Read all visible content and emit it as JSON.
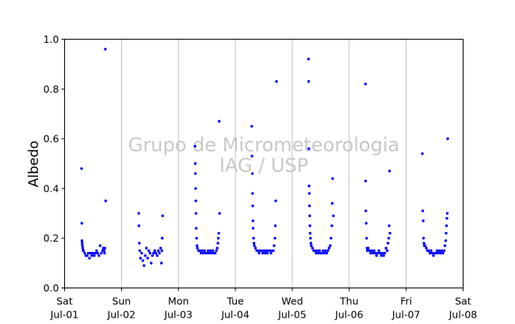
{
  "chart_data": {
    "type": "scatter",
    "title": "",
    "xlabel": "",
    "ylabel": "Albedo",
    "ylim": [
      0.0,
      1.0
    ],
    "xlim": [
      "2017-07-01",
      "2017-07-08"
    ],
    "y_ticks": [
      "0.0",
      "0.2",
      "0.4",
      "0.6",
      "0.8",
      "1.0"
    ],
    "x_ticks": [
      {
        "date": "2017-07-01",
        "day": "Sat",
        "label": "Jul-01"
      },
      {
        "date": "2017-07-02",
        "day": "Sun",
        "label": "Jul-02"
      },
      {
        "date": "2017-07-03",
        "day": "Mon",
        "label": "Jul-03"
      },
      {
        "date": "2017-07-04",
        "day": "Tue",
        "label": "Jul-04"
      },
      {
        "date": "2017-07-05",
        "day": "Wed",
        "label": "Jul-05"
      },
      {
        "date": "2017-07-06",
        "day": "Thu",
        "label": "Jul-06"
      },
      {
        "date": "2017-07-07",
        "day": "Fri",
        "label": "Jul-07"
      },
      {
        "date": "2017-07-08",
        "day": "Sat",
        "label": "Jul-08"
      }
    ],
    "grid": "vertical",
    "marker_color": "#0000ff",
    "watermark": [
      "Grupo de Micrometeorologia",
      "IAG / USP"
    ],
    "series": [
      {
        "x": [
          "2017-07-01 07:10",
          "2017-07-01 07:15",
          "2017-07-01 07:20",
          "2017-07-01 07:25",
          "2017-07-01 07:30",
          "2017-07-01 07:40",
          "2017-07-01 07:50",
          "2017-07-01 08:00",
          "2017-07-01 08:30",
          "2017-07-01 09:00",
          "2017-07-01 09:30",
          "2017-07-01 10:00",
          "2017-07-01 10:30",
          "2017-07-01 11:00",
          "2017-07-01 11:30",
          "2017-07-01 12:00",
          "2017-07-01 12:30",
          "2017-07-01 13:00",
          "2017-07-01 13:30",
          "2017-07-01 14:00",
          "2017-07-01 14:30",
          "2017-07-01 15:00",
          "2017-07-01 15:30",
          "2017-07-01 16:00",
          "2017-07-01 16:20",
          "2017-07-01 16:40",
          "2017-07-01 16:50",
          "2017-07-01 17:00",
          "2017-07-01 17:10",
          "2017-07-01 17:20",
          "2017-07-02 07:15",
          "2017-07-02 07:20",
          "2017-07-02 07:30",
          "2017-07-02 07:40",
          "2017-07-02 08:00",
          "2017-07-02 08:30",
          "2017-07-02 09:00",
          "2017-07-02 09:30",
          "2017-07-02 10:00",
          "2017-07-02 10:30",
          "2017-07-02 11:00",
          "2017-07-02 11:30",
          "2017-07-02 12:00",
          "2017-07-02 12:30",
          "2017-07-02 13:00",
          "2017-07-02 13:30",
          "2017-07-02 14:00",
          "2017-07-02 14:30",
          "2017-07-02 15:00",
          "2017-07-02 15:30",
          "2017-07-02 16:00",
          "2017-07-02 16:30",
          "2017-07-02 16:50",
          "2017-07-02 17:00",
          "2017-07-02 17:10",
          "2017-07-02 17:20",
          "2017-07-03 07:00",
          "2017-07-03 07:05",
          "2017-07-03 07:10",
          "2017-07-03 07:15",
          "2017-07-03 07:20",
          "2017-07-03 07:25",
          "2017-07-03 07:30",
          "2017-07-03 07:40",
          "2017-07-03 07:50",
          "2017-07-03 08:00",
          "2017-07-03 08:30",
          "2017-07-03 09:00",
          "2017-07-03 09:30",
          "2017-07-03 10:00",
          "2017-07-03 10:30",
          "2017-07-03 11:00",
          "2017-07-03 11:30",
          "2017-07-03 12:00",
          "2017-07-03 12:30",
          "2017-07-03 13:00",
          "2017-07-03 13:30",
          "2017-07-03 14:00",
          "2017-07-03 14:30",
          "2017-07-03 15:00",
          "2017-07-03 15:30",
          "2017-07-03 16:00",
          "2017-07-03 16:20",
          "2017-07-03 16:40",
          "2017-07-03 16:50",
          "2017-07-03 17:00",
          "2017-07-03 17:10",
          "2017-07-03 17:20",
          "2017-07-04 06:55",
          "2017-07-04 07:00",
          "2017-07-04 07:10",
          "2017-07-04 07:15",
          "2017-07-04 07:20",
          "2017-07-04 07:25",
          "2017-07-04 07:30",
          "2017-07-04 07:40",
          "2017-07-04 07:50",
          "2017-07-04 08:00",
          "2017-07-04 08:30",
          "2017-07-04 09:00",
          "2017-07-04 09:30",
          "2017-07-04 10:00",
          "2017-07-04 10:30",
          "2017-07-04 11:00",
          "2017-07-04 11:30",
          "2017-07-04 12:00",
          "2017-07-04 12:30",
          "2017-07-04 13:00",
          "2017-07-04 13:30",
          "2017-07-04 14:00",
          "2017-07-04 14:30",
          "2017-07-04 15:00",
          "2017-07-04 15:30",
          "2017-07-04 16:00",
          "2017-07-04 16:20",
          "2017-07-04 16:40",
          "2017-07-04 16:50",
          "2017-07-04 17:00",
          "2017-07-04 17:20",
          "2017-07-05 06:50",
          "2017-07-05 06:55",
          "2017-07-05 07:00",
          "2017-07-05 07:05",
          "2017-07-05 07:10",
          "2017-07-05 07:15",
          "2017-07-05 07:20",
          "2017-07-05 07:25",
          "2017-07-05 07:30",
          "2017-07-05 07:40",
          "2017-07-05 07:50",
          "2017-07-05 08:00",
          "2017-07-05 08:30",
          "2017-07-05 09:00",
          "2017-07-05 09:30",
          "2017-07-05 10:00",
          "2017-07-05 10:30",
          "2017-07-05 11:00",
          "2017-07-05 11:30",
          "2017-07-05 12:00",
          "2017-07-05 12:30",
          "2017-07-05 13:00",
          "2017-07-05 13:30",
          "2017-07-05 14:00",
          "2017-07-05 14:30",
          "2017-07-05 15:00",
          "2017-07-05 15:30",
          "2017-07-05 16:00",
          "2017-07-05 16:20",
          "2017-07-05 16:40",
          "2017-07-05 16:50",
          "2017-07-05 17:00",
          "2017-07-05 17:20",
          "2017-07-06 06:50",
          "2017-07-06 06:55",
          "2017-07-06 07:00",
          "2017-07-06 07:10",
          "2017-07-06 07:20",
          "2017-07-06 07:30",
          "2017-07-06 07:40",
          "2017-07-06 08:00",
          "2017-07-06 08:30",
          "2017-07-06 09:00",
          "2017-07-06 09:30",
          "2017-07-06 10:00",
          "2017-07-06 10:30",
          "2017-07-06 11:00",
          "2017-07-06 11:30",
          "2017-07-06 12:00",
          "2017-07-06 12:30",
          "2017-07-06 13:00",
          "2017-07-06 13:30",
          "2017-07-06 14:00",
          "2017-07-06 14:30",
          "2017-07-06 15:00",
          "2017-07-06 15:30",
          "2017-07-06 16:00",
          "2017-07-06 16:20",
          "2017-07-06 16:40",
          "2017-07-06 16:50",
          "2017-07-06 17:00",
          "2017-07-06 17:10",
          "2017-07-07 06:50",
          "2017-07-07 07:00",
          "2017-07-07 07:10",
          "2017-07-07 07:20",
          "2017-07-07 07:30",
          "2017-07-07 07:40",
          "2017-07-07 08:00",
          "2017-07-07 08:30",
          "2017-07-07 09:00",
          "2017-07-07 09:30",
          "2017-07-07 10:00",
          "2017-07-07 10:30",
          "2017-07-07 11:00",
          "2017-07-07 11:30",
          "2017-07-07 12:00",
          "2017-07-07 12:30",
          "2017-07-07 13:00",
          "2017-07-07 13:30",
          "2017-07-07 14:00",
          "2017-07-07 14:30",
          "2017-07-07 15:00",
          "2017-07-07 15:30",
          "2017-07-07 16:00",
          "2017-07-07 16:20",
          "2017-07-07 16:40",
          "2017-07-07 16:50",
          "2017-07-07 17:00",
          "2017-07-07 17:10",
          "2017-07-07 17:20",
          "2017-07-07 17:30"
        ],
        "y": [
          0.48,
          0.26,
          0.19,
          0.18,
          0.17,
          0.16,
          0.15,
          0.15,
          0.14,
          0.13,
          0.13,
          0.14,
          0.12,
          0.14,
          0.13,
          0.14,
          0.13,
          0.14,
          0.15,
          0.14,
          0.13,
          0.17,
          0.14,
          0.15,
          0.16,
          0.15,
          0.14,
          0.16,
          0.96,
          0.35,
          0.3,
          0.25,
          0.18,
          0.15,
          0.12,
          0.14,
          0.11,
          0.09,
          0.13,
          0.16,
          0.12,
          0.15,
          0.14,
          0.1,
          0.13,
          0.14,
          0.15,
          0.14,
          0.13,
          0.15,
          0.14,
          0.16,
          0.1,
          0.15,
          0.2,
          0.29,
          0.57,
          0.5,
          0.46,
          0.4,
          0.35,
          0.3,
          0.24,
          0.2,
          0.17,
          0.16,
          0.15,
          0.15,
          0.14,
          0.15,
          0.14,
          0.15,
          0.14,
          0.14,
          0.15,
          0.14,
          0.15,
          0.14,
          0.15,
          0.14,
          0.14,
          0.15,
          0.16,
          0.18,
          0.2,
          0.22,
          0.67,
          0.3,
          0.65,
          0.53,
          0.46,
          0.38,
          0.33,
          0.27,
          0.24,
          0.2,
          0.18,
          0.17,
          0.16,
          0.15,
          0.15,
          0.14,
          0.15,
          0.15,
          0.14,
          0.15,
          0.14,
          0.15,
          0.14,
          0.15,
          0.15,
          0.14,
          0.15,
          0.15,
          0.17,
          0.2,
          0.25,
          0.35,
          0.83,
          0.92,
          0.83,
          0.56,
          0.41,
          0.38,
          0.33,
          0.29,
          0.25,
          0.22,
          0.2,
          0.18,
          0.17,
          0.16,
          0.15,
          0.15,
          0.14,
          0.15,
          0.14,
          0.15,
          0.14,
          0.14,
          0.15,
          0.14,
          0.15,
          0.14,
          0.15,
          0.16,
          0.17,
          0.2,
          0.25,
          0.34,
          0.44,
          0.29,
          0.82,
          0.43,
          0.31,
          0.26,
          0.2,
          0.16,
          0.15,
          0.16,
          0.15,
          0.14,
          0.15,
          0.14,
          0.15,
          0.14,
          0.13,
          0.14,
          0.15,
          0.14,
          0.13,
          0.14,
          0.13,
          0.14,
          0.16,
          0.15,
          0.18,
          0.2,
          0.25,
          0.47,
          0.22,
          0.54,
          0.31,
          0.27,
          0.2,
          0.18,
          0.17,
          0.17,
          0.16,
          0.15,
          0.15,
          0.14,
          0.15,
          0.14,
          0.13,
          0.14,
          0.14,
          0.15,
          0.14,
          0.15,
          0.14,
          0.15,
          0.14,
          0.15,
          0.17,
          0.19,
          0.22,
          0.25,
          0.28,
          0.3,
          0.6
        ]
      }
    ]
  }
}
